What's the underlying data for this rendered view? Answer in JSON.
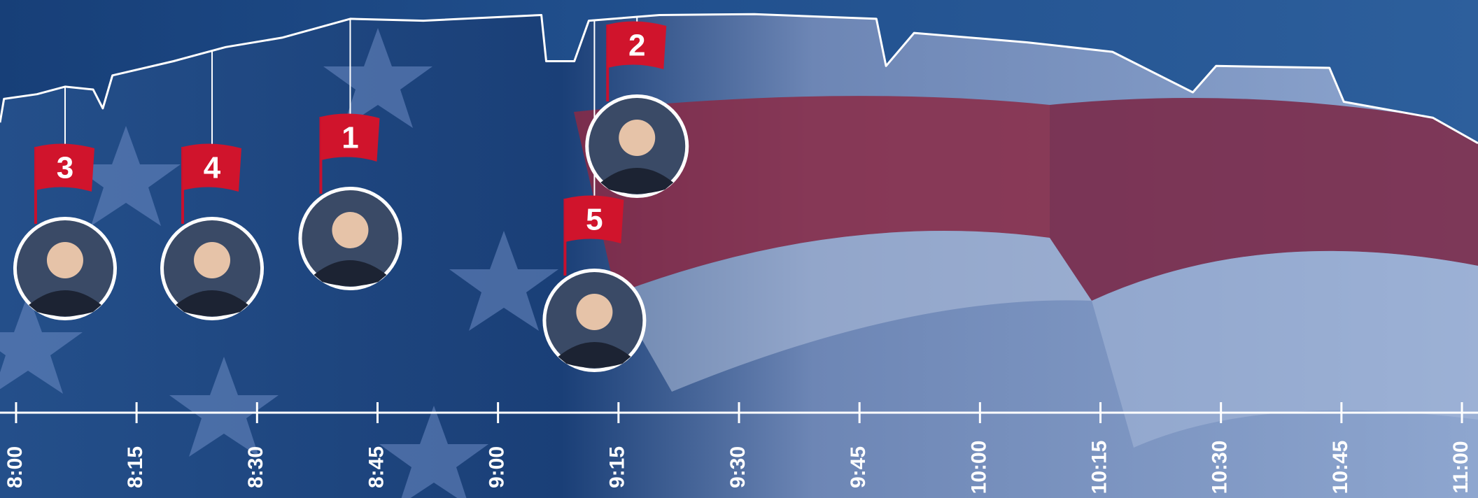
{
  "chart_data": {
    "type": "line",
    "x": [
      -2,
      -1.5,
      2.6,
      6.1,
      9.6,
      10.8,
      12,
      19.6,
      26.1,
      33.1,
      41.6,
      50.7,
      65.4,
      66,
      69.5,
      71.3,
      80.1,
      91.9,
      107.1,
      108.3,
      111.8,
      125.9,
      136.5,
      146.5,
      149.4,
      163.5,
      165.3,
      176.4,
      182
    ],
    "values": [
      30,
      55,
      60,
      68,
      65,
      45,
      80,
      95,
      110,
      120,
      140,
      138,
      144,
      95,
      95,
      138,
      144,
      145,
      140,
      90,
      125,
      115,
      105,
      62,
      90,
      88,
      52,
      35,
      8
    ],
    "color": "#ffffff",
    "xlim": [
      -2,
      182
    ],
    "ylim": [
      0,
      160
    ],
    "xticks": [
      {
        "value": 0,
        "label": "8:00"
      },
      {
        "value": 15,
        "label": "8:15"
      },
      {
        "value": 30,
        "label": "8:30"
      },
      {
        "value": 45,
        "label": "8:45"
      },
      {
        "value": 60,
        "label": "9:00"
      },
      {
        "value": 75,
        "label": "9:15"
      },
      {
        "value": 90,
        "label": "9:30"
      },
      {
        "value": 105,
        "label": "9:45"
      },
      {
        "value": 120,
        "label": "10:00"
      },
      {
        "value": 135,
        "label": "10:15"
      },
      {
        "value": 150,
        "label": "10:30"
      },
      {
        "value": 165,
        "label": "10:45"
      },
      {
        "value": 180,
        "label": "11:00"
      }
    ],
    "markers": [
      {
        "label": "3",
        "x": 6.1
      },
      {
        "label": "4",
        "x": 24.4
      },
      {
        "label": "1",
        "x": 41.6
      },
      {
        "label": "5",
        "x": 72
      },
      {
        "label": "2",
        "x": 77.3
      }
    ]
  }
}
